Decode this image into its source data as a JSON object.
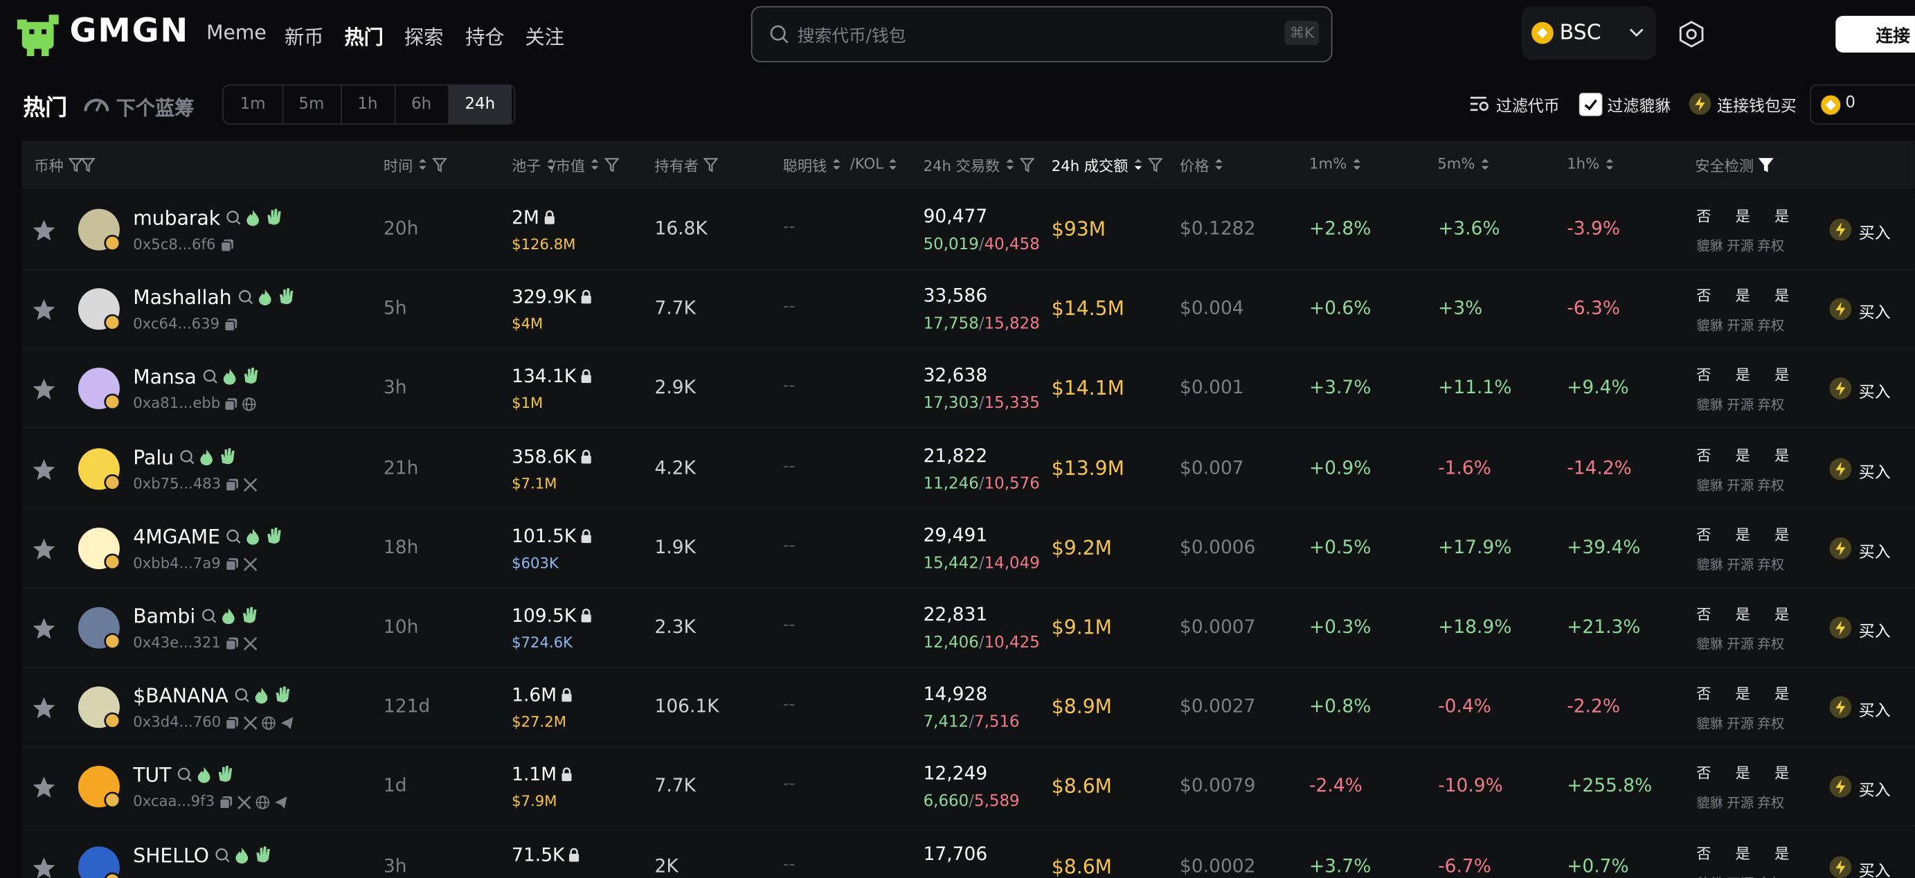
{
  "header": {
    "logo": "GMGN",
    "nav": [
      "Meme",
      "新币",
      "热门",
      "探索",
      "持仓",
      "关注"
    ],
    "active_nav": 2,
    "search_placeholder": "搜索代币/钱包",
    "search_shortcut": "⌘K",
    "chain": "BSC",
    "connect": "连接"
  },
  "toolbar": {
    "title": "热门",
    "next_bluechip": "下个蓝筹",
    "timeframes": [
      "1m",
      "5m",
      "1h",
      "6h",
      "24h"
    ],
    "active_timeframe": 4,
    "filter_tokens": "过滤代币",
    "filter_honeypot": "过滤貔貅",
    "filter_honeypot_checked": true,
    "quick_buy": "连接钱包买",
    "quick_buy_amount": "0"
  },
  "table": {
    "columns": {
      "token": "币种",
      "age": "时间",
      "pool": "池子",
      "mcap": "/市值",
      "holders": "持有者",
      "smart": "聪明钱",
      "kol": "/KOL",
      "txns": "24h 交易数",
      "volume": "24h 成交额",
      "price": "价格",
      "m1": "1m%",
      "m5": "5m%",
      "h1": "1h%",
      "safety": "安全检测"
    },
    "sorted_column": "volume",
    "txn_separator": "/",
    "safety_labels": [
      "貔貅",
      "开源",
      "弃权"
    ],
    "buy_label": "买入",
    "rows": [
      {
        "name": "mubarak",
        "address": "0x5c8...6f6",
        "age": "20h",
        "pool": "2M",
        "mcap": "$126.8M",
        "mcap_color": "#f5c451",
        "holders": "16.8K",
        "smart": "--",
        "txns": "90,477",
        "buys": "50,019",
        "sells": "40,458",
        "volume": "$93M",
        "price": "$0.1282",
        "m1": "+2.8%",
        "m5": "+3.6%",
        "h1": "-3.9%",
        "safety": [
          "否",
          "是",
          "是"
        ]
      },
      {
        "name": "Mashallah",
        "address": "0xc64...639",
        "age": "5h",
        "pool": "329.9K",
        "mcap": "$4M",
        "mcap_color": "#f5c451",
        "holders": "7.7K",
        "smart": "--",
        "txns": "33,586",
        "buys": "17,758",
        "sells": "15,828",
        "volume": "$14.5M",
        "price": "$0.004",
        "m1": "+0.6%",
        "m5": "+3%",
        "h1": "-6.3%",
        "safety": [
          "否",
          "是",
          "是"
        ]
      },
      {
        "name": "Mansa",
        "address": "0xa81...ebb",
        "age": "3h",
        "pool": "134.1K",
        "mcap": "$1M",
        "mcap_color": "#f5c451",
        "holders": "2.9K",
        "smart": "--",
        "txns": "32,638",
        "buys": "17,303",
        "sells": "15,335",
        "volume": "$14.1M",
        "price": "$0.001",
        "m1": "+3.7%",
        "m5": "+11.1%",
        "h1": "+9.4%",
        "safety": [
          "否",
          "是",
          "是"
        ]
      },
      {
        "name": "Palu",
        "address": "0xb75...483",
        "age": "21h",
        "pool": "358.6K",
        "mcap": "$7.1M",
        "mcap_color": "#f5c451",
        "holders": "4.2K",
        "smart": "--",
        "txns": "21,822",
        "buys": "11,246",
        "sells": "10,576",
        "volume": "$13.9M",
        "price": "$0.007",
        "m1": "+0.9%",
        "m5": "-1.6%",
        "h1": "-14.2%",
        "safety": [
          "否",
          "是",
          "是"
        ]
      },
      {
        "name": "4MGAME",
        "address": "0xbb4...7a9",
        "age": "18h",
        "pool": "101.5K",
        "mcap": "$603K",
        "mcap_color": "#8fb8f0",
        "holders": "1.9K",
        "smart": "--",
        "txns": "29,491",
        "buys": "15,442",
        "sells": "14,049",
        "volume": "$9.2M",
        "price": "$0.0006",
        "m1": "+0.5%",
        "m5": "+17.9%",
        "h1": "+39.4%",
        "safety": [
          "否",
          "是",
          "是"
        ]
      },
      {
        "name": "Bambi",
        "address": "0x43e...321",
        "age": "10h",
        "pool": "109.5K",
        "mcap": "$724.6K",
        "mcap_color": "#8fb8f0",
        "holders": "2.3K",
        "smart": "--",
        "txns": "22,831",
        "buys": "12,406",
        "sells": "10,425",
        "volume": "$9.1M",
        "price": "$0.0007",
        "m1": "+0.3%",
        "m5": "+18.9%",
        "h1": "+21.3%",
        "safety": [
          "否",
          "是",
          "是"
        ]
      },
      {
        "name": "$BANANA",
        "address": "0x3d4...760",
        "age": "121d",
        "pool": "1.6M",
        "mcap": "$27.2M",
        "mcap_color": "#f5c451",
        "holders": "106.1K",
        "smart": "--",
        "txns": "14,928",
        "buys": "7,412",
        "sells": "7,516",
        "volume": "$8.9M",
        "price": "$0.0027",
        "m1": "+0.8%",
        "m5": "-0.4%",
        "h1": "-2.2%",
        "safety": [
          "否",
          "是",
          "是"
        ]
      },
      {
        "name": "TUT",
        "address": "0xcaa...9f3",
        "age": "1d",
        "pool": "1.1M",
        "mcap": "$7.9M",
        "mcap_color": "#f5c451",
        "holders": "7.7K",
        "smart": "--",
        "txns": "12,249",
        "buys": "6,660",
        "sells": "5,589",
        "volume": "$8.6M",
        "price": "$0.0079",
        "m1": "-2.4%",
        "m5": "-10.9%",
        "h1": "+255.8%",
        "safety": [
          "否",
          "是",
          "是"
        ]
      },
      {
        "name": "SHELLO",
        "age": "3h",
        "pool": "71.5K",
        "holders": "2K",
        "smart": "--",
        "txns": "17,706",
        "volume": "$8.6M",
        "price": "$0.0002",
        "m1": "+3.7%",
        "m5": "-6.7%",
        "h1": "+0.7%",
        "safety": [
          "否",
          "是",
          "是"
        ]
      }
    ]
  }
}
